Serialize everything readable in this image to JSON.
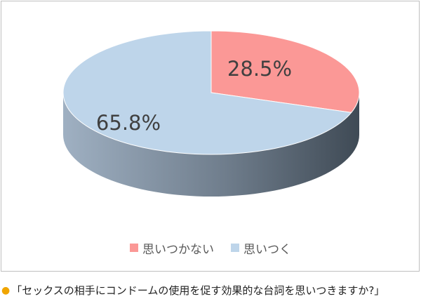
{
  "chart_data": {
    "type": "pie",
    "style": "3d",
    "slices": [
      {
        "label": "思いつかない",
        "value": 28.5,
        "value_label": "28.5%",
        "color": "#fb9896"
      },
      {
        "label": "思いつく",
        "value": 65.8,
        "value_label": "65.8%",
        "color": "#bed5ea"
      }
    ],
    "side_color": "#6f7d8c",
    "legend_position": "bottom"
  },
  "caption": {
    "bullet": "●",
    "text": "「セックスの相手にコンドームの使用を促す効果的な台詞を思いつきますか?」"
  }
}
